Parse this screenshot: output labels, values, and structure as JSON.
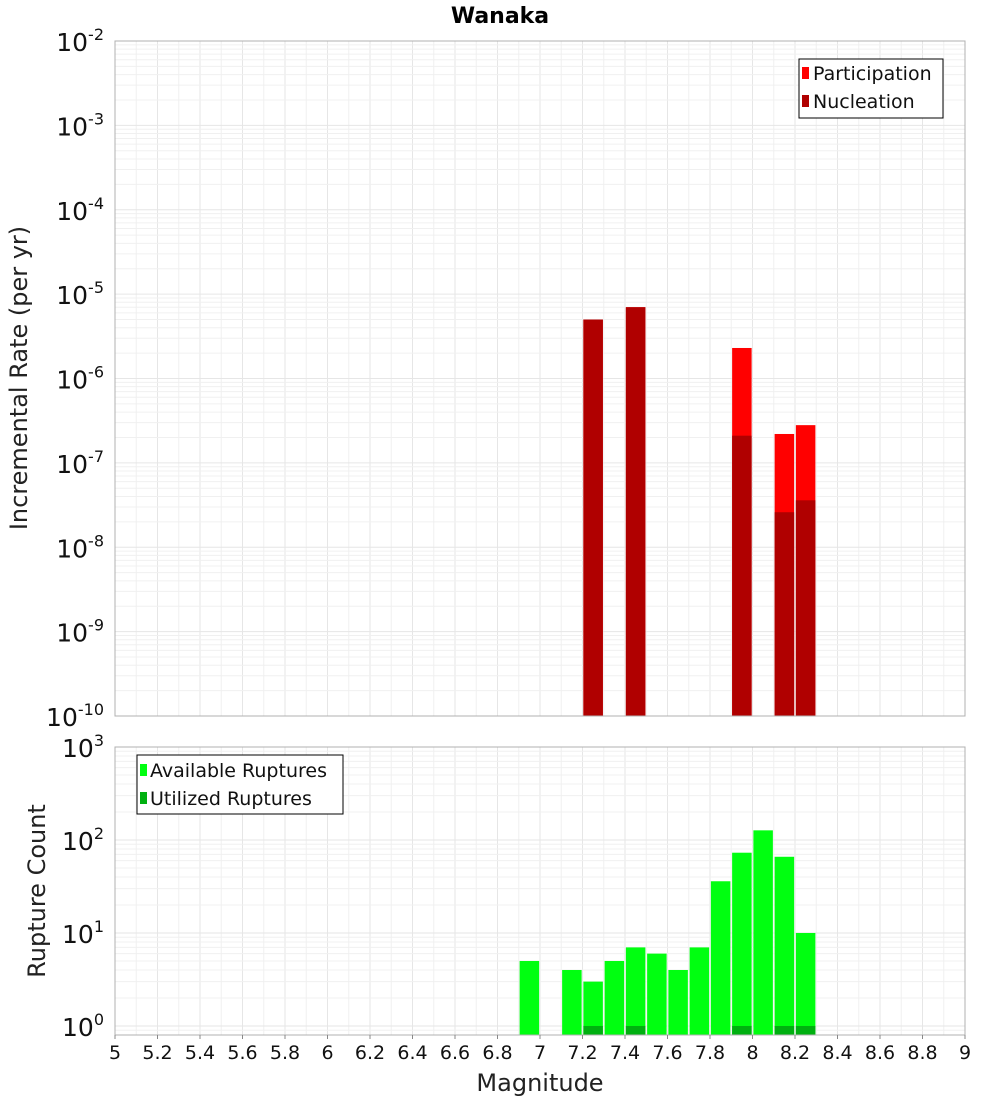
{
  "colors": {
    "participation": "#ff0000",
    "nucleation": "#b00000",
    "available": "#00ff10",
    "utilized": "#00b010"
  },
  "chart_data": [
    {
      "type": "bar",
      "title": "Wanaka",
      "xlabel": "",
      "ylabel": "Incremental Rate (per yr)",
      "yscale": "log",
      "xlim": [
        5,
        9
      ],
      "ylim": [
        1e-10,
        0.01
      ],
      "ytick_exponents": [
        -10,
        -9,
        -8,
        -7,
        -6,
        -5,
        -4,
        -3,
        -2
      ],
      "grid": true,
      "legend_position": "top-right",
      "legend": [
        "Participation",
        "Nucleation"
      ],
      "series": [
        {
          "name": "Participation",
          "x": [
            7.25,
            7.45,
            7.95,
            8.15,
            8.25
          ],
          "values": [
            5e-06,
            7e-06,
            2.3e-06,
            2.2e-07,
            2.8e-07
          ]
        },
        {
          "name": "Nucleation",
          "x": [
            7.25,
            7.45,
            7.95,
            8.15,
            8.25
          ],
          "values": [
            5e-06,
            7e-06,
            2.1e-07,
            2.6e-08,
            3.6e-08
          ]
        }
      ]
    },
    {
      "type": "bar",
      "title": "",
      "xlabel": "Magnitude",
      "ylabel": "Rupture Count",
      "yscale": "log",
      "xlim": [
        5,
        9
      ],
      "ylim": [
        0.8,
        1000
      ],
      "ytick_exponents": [
        0,
        1,
        2,
        3
      ],
      "xticks": [
        "5",
        "5.2",
        "5.4",
        "5.6",
        "5.8",
        "6",
        "6.2",
        "6.4",
        "6.6",
        "6.8",
        "7",
        "7.2",
        "7.4",
        "7.6",
        "7.8",
        "8",
        "8.2",
        "8.4",
        "8.6",
        "8.8",
        "9"
      ],
      "grid": true,
      "legend_position": "top-left",
      "legend": [
        "Available Ruptures",
        "Utilized Ruptures"
      ],
      "series": [
        {
          "name": "Available Ruptures",
          "x": [
            6.95,
            7.15,
            7.25,
            7.35,
            7.45,
            7.55,
            7.65,
            7.75,
            7.85,
            7.95,
            8.05,
            8.15,
            8.25
          ],
          "values": [
            5,
            4,
            3,
            5,
            7,
            6,
            4,
            7,
            36,
            73,
            127,
            66,
            10
          ]
        },
        {
          "name": "Utilized Ruptures",
          "x": [
            7.25,
            7.45,
            7.95,
            8.15,
            8.25
          ],
          "values": [
            1,
            1,
            1,
            1,
            1
          ]
        }
      ]
    }
  ]
}
